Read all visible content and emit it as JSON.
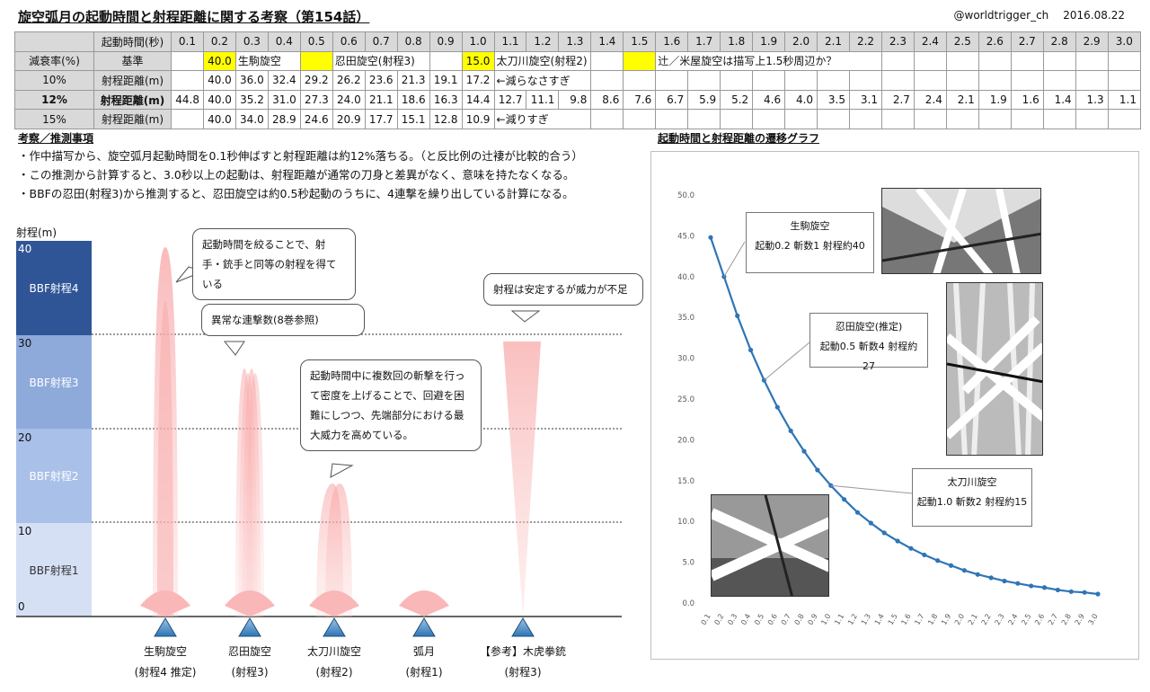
{
  "title": "旋空弧月の起動時間と射程距離に関する考察（第154話）",
  "credit": "@worldtrigger_ch",
  "date": "2016.08.22",
  "table": {
    "header": [
      "",
      "起動時間(秒)",
      "0.1",
      "0.2",
      "0.3",
      "0.4",
      "0.5",
      "0.6",
      "0.7",
      "0.8",
      "0.9",
      "1.0",
      "1.1",
      "1.2",
      "1.3",
      "1.4",
      "1.5",
      "1.6",
      "1.7",
      "1.8",
      "1.9",
      "2.0",
      "2.1",
      "2.2",
      "2.3",
      "2.4",
      "2.5",
      "2.6",
      "2.7",
      "2.8",
      "2.9",
      "3.0"
    ],
    "row1": {
      "c0": "減衰率(%)",
      "c1": "基準",
      "v1": "40.0",
      "n1": "生駒旋空",
      "v2": "",
      "n2": "忍田旋空(射程3)",
      "v3": "15.0",
      "n3": "太刀川旋空(射程2)",
      "v4": "",
      "n4": "辻／米屋旋空は描写上1.5秒周辺か？"
    },
    "row2": {
      "c0": "10%",
      "c1": "射程距離(m)",
      "vals": [
        "40.0",
        "36.0",
        "32.4",
        "29.2",
        "26.2",
        "23.6",
        "21.3",
        "19.1",
        "17.2"
      ],
      "note": "←減らなさすぎ"
    },
    "row3": {
      "c0": "12%",
      "c1": "射程距離(m)",
      "vals": [
        "44.8",
        "40.0",
        "35.2",
        "31.0",
        "27.3",
        "24.0",
        "21.1",
        "18.6",
        "16.3",
        "14.4",
        "12.7",
        "11.1",
        "9.8",
        "8.6",
        "7.6",
        "6.7",
        "5.9",
        "5.2",
        "4.6",
        "4.0",
        "3.5",
        "3.1",
        "2.7",
        "2.4",
        "2.1",
        "1.9",
        "1.6",
        "1.4",
        "1.3",
        "1.1"
      ]
    },
    "row4": {
      "c0": "15%",
      "c1": "射程距離(m)",
      "vals": [
        "40.0",
        "34.0",
        "28.9",
        "24.6",
        "20.9",
        "17.7",
        "15.1",
        "12.8",
        "10.9"
      ],
      "note": "←減りすぎ"
    }
  },
  "section1": "考察／推測事項",
  "points": [
    "・作中描写から、旋空弧月起動時間を0.1秒伸ばすと射程距離は約12%落ちる。（と反比例の辻褄が比較的合う）",
    "・この推測から計算すると、3.0秒以上の起動は、射程距離が通常の刀身と差異がなく、意味を持たなくなる。",
    "・BBFの忍田(射程3)から推測すると、忍田旋空は約0.5秒起動のうちに、4連撃を繰り出している計算になる。"
  ],
  "left": {
    "ylabel": "射程(m)",
    "ticks": [
      "40",
      "30",
      "20",
      "10",
      "0"
    ],
    "bands": [
      "BBF射程4",
      "BBF射程3",
      "BBF射程2",
      "BBF射程1"
    ],
    "bubbles": [
      "起動時間を絞ることで、射手・銃手と同等の射程を得ている",
      "異常な連撃数(8巻参照)",
      "起動時間中に複数回の斬撃を行って密度を上げることで、回避を困難にしつつ、先端部分における最大威力を高めている。",
      "射程は安定するが威力が不足"
    ],
    "users": [
      {
        "name": "生駒旋空",
        "sub": "(射程4 推定)"
      },
      {
        "name": "忍田旋空",
        "sub": "(射程3)"
      },
      {
        "name": "太刀川旋空",
        "sub": "(射程2)"
      },
      {
        "name": "弧月",
        "sub": "(射程1)"
      },
      {
        "name": "【参考】木虎拳銃",
        "sub": "(射程3)"
      }
    ]
  },
  "section2": "起動時間と射程距離の遷移グラフ",
  "chart_data": {
    "type": "line",
    "x": [
      "0.1",
      "0.2",
      "0.3",
      "0.4",
      "0.5",
      "0.6",
      "0.7",
      "0.8",
      "0.9",
      "1.0",
      "1.1",
      "1.2",
      "1.3",
      "1.4",
      "1.5",
      "1.6",
      "1.7",
      "1.8",
      "1.9",
      "2.0",
      "2.1",
      "2.2",
      "2.3",
      "2.4",
      "2.5",
      "2.6",
      "2.7",
      "2.8",
      "2.9",
      "3.0"
    ],
    "values": [
      44.8,
      40.0,
      35.2,
      31.0,
      27.3,
      24.0,
      21.1,
      18.6,
      16.3,
      14.4,
      12.7,
      11.1,
      9.8,
      8.6,
      7.6,
      6.7,
      5.9,
      5.2,
      4.6,
      4.0,
      3.5,
      3.1,
      2.7,
      2.4,
      2.1,
      1.9,
      1.6,
      1.4,
      1.3,
      1.1
    ],
    "ylim": [
      0,
      50
    ],
    "yticks": [
      "50.0",
      "45.0",
      "40.0",
      "35.0",
      "30.0",
      "25.0",
      "20.0",
      "15.0",
      "10.0",
      "5.0",
      "0.0"
    ],
    "color": "#2e75b6",
    "annotations": [
      {
        "title": "生駒旋空",
        "text": "起動0.2 斬数1 射程約40"
      },
      {
        "title": "忍田旋空(推定)",
        "text": "起動0.5 斬数4 射程約27"
      },
      {
        "title": "太刀川旋空",
        "text": "起動1.0 斬数2 射程約15"
      }
    ]
  }
}
